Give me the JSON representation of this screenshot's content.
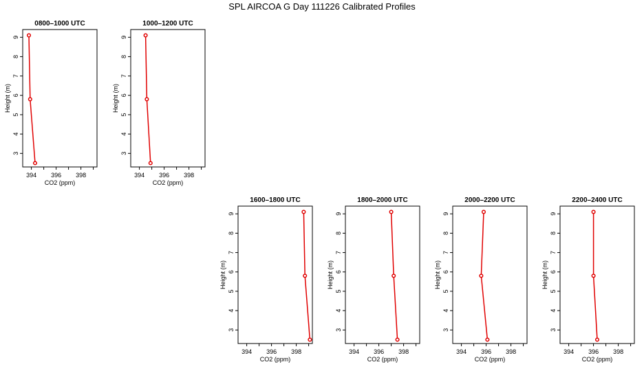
{
  "figure_title": "SPL AIRCOA G  Day 111226  Calibrated Profiles",
  "chart_data": [
    {
      "type": "line",
      "title": "0800–1000 UTC",
      "xlabel": "CO2 (ppm)",
      "ylabel": "Height (m)",
      "xticks": [
        "394",
        "396",
        "398"
      ],
      "yticks": [
        "3",
        "4",
        "5",
        "6",
        "7",
        "8",
        "9"
      ],
      "xlim": [
        393.3,
        399.3
      ],
      "ylim": [
        2.3,
        9.4
      ],
      "series": [
        {
          "x": [
            393.8,
            393.9,
            394.3
          ],
          "y": [
            9.1,
            5.8,
            2.5
          ]
        }
      ]
    },
    {
      "type": "line",
      "title": "1000–1200 UTC",
      "xlabel": "CO2 (ppm)",
      "ylabel": "Height (m)",
      "xticks": [
        "394",
        "396",
        "398"
      ],
      "yticks": [
        "3",
        "4",
        "5",
        "6",
        "7",
        "8",
        "9"
      ],
      "xlim": [
        393.3,
        399.3
      ],
      "ylim": [
        2.3,
        9.4
      ],
      "series": [
        {
          "x": [
            394.5,
            394.6,
            394.9
          ],
          "y": [
            9.1,
            5.8,
            2.5
          ]
        }
      ]
    },
    {
      "type": "line",
      "title": "1600–1800 UTC",
      "xlabel": "CO2 (ppm)",
      "ylabel": "Height (m)",
      "xticks": [
        "394",
        "396",
        "398"
      ],
      "yticks": [
        "3",
        "4",
        "5",
        "6",
        "7",
        "8",
        "9"
      ],
      "xlim": [
        393.3,
        399.3
      ],
      "ylim": [
        2.3,
        9.4
      ],
      "series": [
        {
          "x": [
            398.6,
            398.7,
            399.1
          ],
          "y": [
            9.1,
            5.8,
            2.5
          ]
        }
      ]
    },
    {
      "type": "line",
      "title": "1800–2000 UTC",
      "xlabel": "CO2 (ppm)",
      "ylabel": "Height (m)",
      "xticks": [
        "394",
        "396",
        "398"
      ],
      "yticks": [
        "3",
        "4",
        "5",
        "6",
        "7",
        "8",
        "9"
      ],
      "xlim": [
        393.3,
        399.3
      ],
      "ylim": [
        2.3,
        9.4
      ],
      "series": [
        {
          "x": [
            397.0,
            397.2,
            397.5
          ],
          "y": [
            9.1,
            5.8,
            2.5
          ]
        }
      ]
    },
    {
      "type": "line",
      "title": "2000–2200 UTC",
      "xlabel": "CO2 (ppm)",
      "ylabel": "Height (m)",
      "xticks": [
        "394",
        "396",
        "398"
      ],
      "yticks": [
        "3",
        "4",
        "5",
        "6",
        "7",
        "8",
        "9"
      ],
      "xlim": [
        393.3,
        399.3
      ],
      "ylim": [
        2.3,
        9.4
      ],
      "series": [
        {
          "x": [
            395.8,
            395.6,
            396.1
          ],
          "y": [
            9.1,
            5.8,
            2.5
          ]
        }
      ]
    },
    {
      "type": "line",
      "title": "2200–2400 UTC",
      "xlabel": "CO2 (ppm)",
      "ylabel": "Height (m)",
      "xticks": [
        "394",
        "396",
        "398"
      ],
      "yticks": [
        "3",
        "4",
        "5",
        "6",
        "7",
        "8",
        "9"
      ],
      "xlim": [
        393.3,
        399.3
      ],
      "ylim": [
        2.3,
        9.4
      ],
      "series": [
        {
          "x": [
            396.0,
            396.0,
            396.3
          ],
          "y": [
            9.1,
            5.8,
            2.5
          ]
        }
      ]
    }
  ],
  "line_color": "#e00000"
}
